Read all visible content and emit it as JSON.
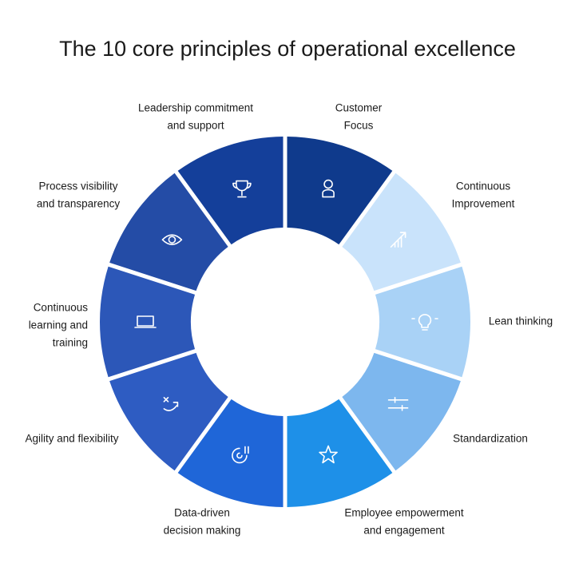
{
  "title": "The 10 core principles of operational excellence",
  "nodes": [
    {
      "label": [
        "Customer",
        "Focus"
      ],
      "color": "#0f3a8c"
    },
    {
      "label": [
        "Continuous",
        "Improvement"
      ],
      "color": "#c9e3fb"
    },
    {
      "label": [
        "Lean thinking"
      ],
      "color": "#a9d2f6"
    },
    {
      "label": [
        "Standardization"
      ],
      "color": "#7db7ee"
    },
    {
      "label": [
        "Employee empowerment",
        "and engagement"
      ],
      "color": "#1e90e8"
    },
    {
      "label": [
        "Data-driven",
        "decision making"
      ],
      "color": "#1f66d8"
    },
    {
      "label": [
        "Agility and flexibility"
      ],
      "color": "#2e5cc2"
    },
    {
      "label": [
        "Continuous",
        "learning and",
        "training"
      ],
      "color": "#2c57b8"
    },
    {
      "label": [
        "Process visibility",
        "and transparency"
      ],
      "color": "#244ca6"
    },
    {
      "label": [
        "Leadership commitment",
        "and support"
      ],
      "color": "#143f9a"
    }
  ]
}
